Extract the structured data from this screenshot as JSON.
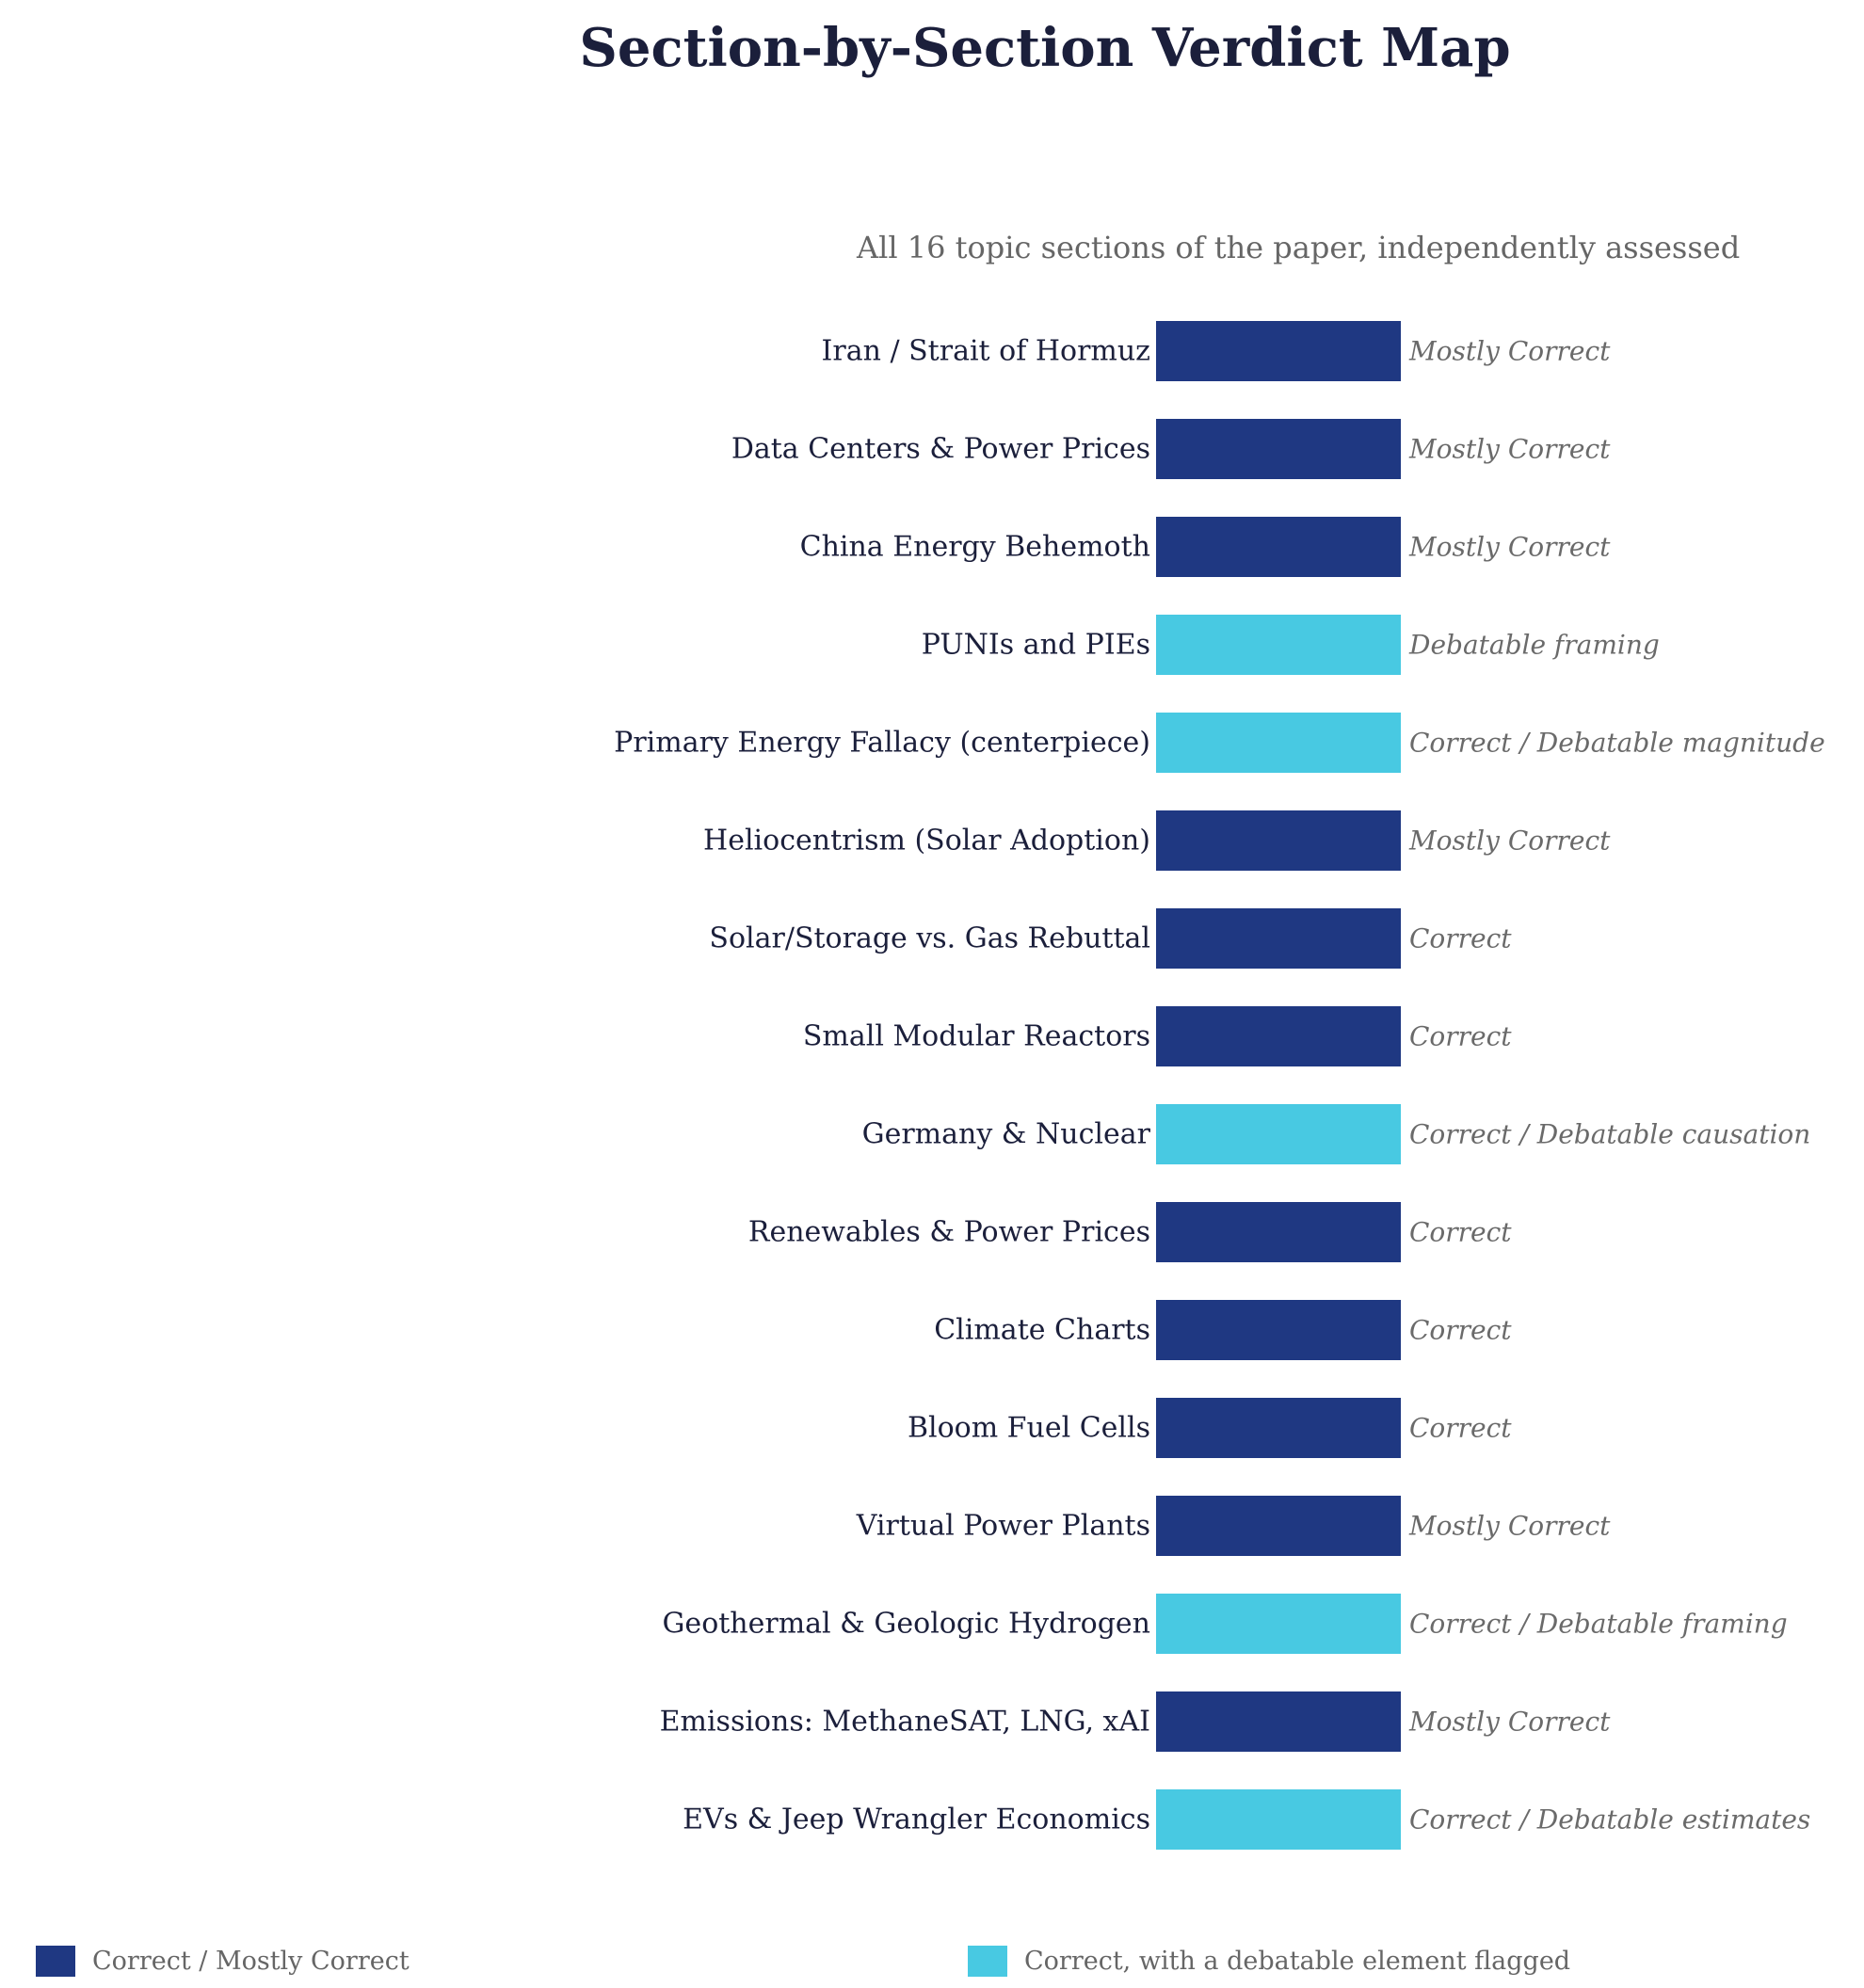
{
  "chart_data": {
    "type": "bar",
    "orientation": "horizontal",
    "title": "Section-by-Section Verdict Map",
    "subtitle": "All 16 topic sections of the paper, independently assessed",
    "categories": [
      "Iran / Strait of Hormuz",
      "Data Centers & Power Prices",
      "China Energy Behemoth",
      "PUNIs and PIEs",
      "Primary Energy Fallacy (centerpiece)",
      "Heliocentrism (Solar Adoption)",
      "Solar/Storage vs. Gas Rebuttal",
      "Small Modular Reactors",
      "Germany & Nuclear",
      "Renewables & Power Prices",
      "Climate Charts",
      "Bloom Fuel Cells",
      "Virtual Power Plants",
      "Geothermal & Geologic Hydrogen",
      "Emissions: MethaneSAT, LNG, xAI",
      "EVs & Jeep Wrangler Economics"
    ],
    "values": [
      1,
      1,
      1,
      1,
      1,
      1,
      1,
      1,
      1,
      1,
      1,
      1,
      1,
      1,
      1,
      1
    ],
    "verdicts": [
      "Mostly Correct",
      "Mostly Correct",
      "Mostly Correct",
      "Debatable framing",
      "Correct / Debatable magnitude",
      "Mostly Correct",
      "Correct",
      "Correct",
      "Correct / Debatable causation",
      "Correct",
      "Correct",
      "Correct",
      "Mostly Correct",
      "Correct / Debatable framing",
      "Mostly Correct",
      "Correct / Debatable estimates"
    ],
    "groups": [
      0,
      0,
      0,
      1,
      1,
      0,
      0,
      0,
      1,
      0,
      0,
      0,
      0,
      1,
      0,
      1
    ],
    "legend": [
      {
        "name": "Correct / Mostly Correct",
        "color": "#1f3882"
      },
      {
        "name": "Correct, with a debatable element flagged",
        "color": "#48c9e2"
      }
    ],
    "legend_position": "bottom",
    "grid": false,
    "xaxis_visible": false
  }
}
